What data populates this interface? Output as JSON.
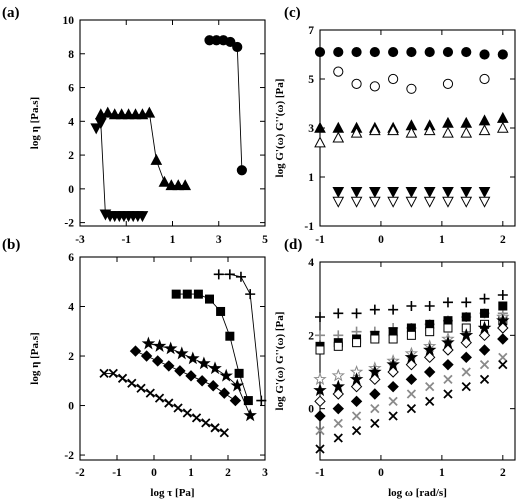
{
  "figure": {
    "colors": {
      "ink": "#000000",
      "gray": "#8a8a8a"
    },
    "panels": [
      {
        "id": "a",
        "label": "(a)"
      },
      {
        "id": "b",
        "label": "(b)"
      },
      {
        "id": "c",
        "label": "(c)"
      },
      {
        "id": "d",
        "label": "(d)"
      }
    ]
  },
  "chart_data": [
    {
      "panel": "(a)",
      "type": "line",
      "xlabel": "",
      "ylabel": "log η [Pa.s]",
      "xlim": [
        -3,
        5
      ],
      "ylim": [
        -2.2,
        10
      ],
      "xticks": [
        -3,
        -1,
        1,
        3,
        5
      ],
      "yticks": [
        -2,
        0,
        2,
        4,
        6,
        8,
        10
      ],
      "series": [
        {
          "marker": "tri-down",
          "line": true,
          "x": [
            -2.3,
            -2.1,
            -1.9,
            -1.7,
            -1.5,
            -1.3,
            -1.1,
            -0.9,
            -0.7,
            -0.5,
            -0.3
          ],
          "y": [
            3.6,
            3.9,
            -1.5,
            -1.6,
            -1.6,
            -1.6,
            -1.6,
            -1.6,
            -1.6,
            -1.6,
            -1.6
          ]
        },
        {
          "marker": "tri-up",
          "line": true,
          "x": [
            -2.1,
            -1.8,
            -1.5,
            -1.2,
            -0.9,
            -0.6,
            -0.3,
            0.0,
            0.3,
            0.65,
            0.95,
            1.25,
            1.55
          ],
          "y": [
            4.4,
            4.5,
            4.4,
            4.4,
            4.4,
            4.4,
            4.4,
            4.5,
            1.7,
            0.4,
            0.2,
            0.2,
            0.2
          ]
        },
        {
          "marker": "circle-filled",
          "line": true,
          "x": [
            2.6,
            2.9,
            3.2,
            3.5,
            3.8,
            4.0
          ],
          "y": [
            8.8,
            8.8,
            8.8,
            8.7,
            8.4,
            1.1
          ]
        }
      ]
    },
    {
      "panel": "(b)",
      "type": "line",
      "xlabel": "log τ [Pa]",
      "ylabel": "log η [Pa.s]",
      "xlim": [
        -2,
        3
      ],
      "ylim": [
        -2.2,
        6
      ],
      "xticks": [
        -2,
        -1,
        0,
        1,
        2,
        3
      ],
      "yticks": [
        -2,
        0,
        2,
        4,
        6
      ],
      "series": [
        {
          "marker": "cross",
          "line": true,
          "x": [
            -1.35,
            -1.1,
            -0.85,
            -0.6,
            -0.35,
            -0.1,
            0.15,
            0.4,
            0.65,
            0.9,
            1.15,
            1.4,
            1.65,
            1.9
          ],
          "y": [
            1.3,
            1.3,
            1.1,
            0.9,
            0.7,
            0.5,
            0.3,
            0.1,
            -0.1,
            -0.3,
            -0.5,
            -0.7,
            -0.9,
            -1.1
          ]
        },
        {
          "marker": "diamond-filled",
          "line": true,
          "x": [
            -0.5,
            -0.2,
            0.1,
            0.4,
            0.7,
            1.0,
            1.3,
            1.6,
            1.9,
            2.2
          ],
          "y": [
            2.2,
            2.0,
            1.8,
            1.6,
            1.4,
            1.2,
            1.0,
            0.8,
            0.5,
            0.2
          ]
        },
        {
          "marker": "star-filled",
          "line": true,
          "x": [
            -0.15,
            0.15,
            0.45,
            0.75,
            1.05,
            1.35,
            1.65,
            1.95,
            2.25,
            2.6
          ],
          "y": [
            2.5,
            2.4,
            2.3,
            2.1,
            1.9,
            1.7,
            1.5,
            1.2,
            0.8,
            -0.4
          ]
        },
        {
          "marker": "square-filled",
          "line": true,
          "x": [
            0.6,
            0.9,
            1.2,
            1.5,
            1.8,
            2.05,
            2.3,
            2.55
          ],
          "y": [
            4.5,
            4.5,
            4.5,
            4.3,
            3.8,
            2.8,
            1.3,
            0.2
          ]
        },
        {
          "marker": "plus",
          "line": true,
          "x": [
            1.75,
            2.05,
            2.35,
            2.6,
            2.9
          ],
          "y": [
            5.3,
            5.3,
            5.2,
            4.5,
            0.2
          ]
        }
      ]
    },
    {
      "panel": "(c)",
      "type": "scatter",
      "xlabel": "",
      "ylabel": "log G'(ω) G''(ω) [Pa]",
      "xlim": [
        -1,
        2.2
      ],
      "ylim": [
        -1,
        7
      ],
      "xticks": [
        -1,
        0,
        1,
        2
      ],
      "yticks": [
        -1,
        1,
        3,
        5,
        7
      ],
      "series": [
        {
          "marker": "circle-filled",
          "x": [
            -1,
            -0.7,
            -0.4,
            -0.1,
            0.2,
            0.5,
            0.8,
            1.1,
            1.4,
            1.7,
            2.0
          ],
          "y": [
            6.1,
            6.1,
            6.1,
            6.1,
            6.1,
            6.1,
            6.1,
            6.1,
            6.1,
            6.0,
            6.0
          ]
        },
        {
          "marker": "circle-open",
          "x": [
            -0.7,
            -0.4,
            -0.1,
            0.2,
            0.5,
            1.1,
            1.7
          ],
          "y": [
            5.3,
            4.8,
            4.7,
            5.0,
            4.6,
            4.8,
            5.0
          ]
        },
        {
          "marker": "tri-up-filled",
          "x": [
            -1,
            -0.7,
            -0.4,
            -0.1,
            0.2,
            0.5,
            0.8,
            1.1,
            1.4,
            1.7,
            2.0
          ],
          "y": [
            3.0,
            3.0,
            3.0,
            3.0,
            3.0,
            3.1,
            3.1,
            3.2,
            3.2,
            3.3,
            3.4
          ]
        },
        {
          "marker": "tri-up-open",
          "x": [
            -1,
            -0.7,
            -0.4,
            -0.1,
            0.2,
            0.5,
            0.8,
            1.1,
            1.4,
            1.7,
            2.0
          ],
          "y": [
            2.4,
            2.6,
            2.8,
            2.9,
            2.9,
            2.8,
            2.9,
            2.8,
            2.8,
            2.9,
            3.0
          ]
        },
        {
          "marker": "tri-down-filled",
          "x": [
            -0.7,
            -0.4,
            -0.1,
            0.2,
            0.5,
            0.8,
            1.1,
            1.4,
            1.7
          ],
          "y": [
            0.4,
            0.4,
            0.4,
            0.4,
            0.4,
            0.4,
            0.4,
            0.4,
            0.4
          ]
        },
        {
          "marker": "tri-down-open",
          "x": [
            -0.7,
            -0.4,
            -0.1,
            0.2,
            0.5,
            0.8,
            1.1,
            1.4,
            1.7
          ],
          "y": [
            0.0,
            0.0,
            0.0,
            0.0,
            0.0,
            0.0,
            0.0,
            0.0,
            0.0
          ]
        }
      ]
    },
    {
      "panel": "(d)",
      "type": "scatter",
      "xlabel": "log ω [rad/s]",
      "ylabel": "log G'(ω) G''(ω) [Pa]",
      "xlim": [
        -1,
        2.2
      ],
      "ylim": [
        -1.4,
        4
      ],
      "xticks": [
        -1,
        0,
        1,
        2
      ],
      "yticks": [
        0,
        2,
        4
      ],
      "series": [
        {
          "marker": "plus",
          "color": "ink",
          "x": [
            -1,
            -0.7,
            -0.4,
            -0.1,
            0.2,
            0.5,
            0.8,
            1.1,
            1.4,
            1.7,
            2.0
          ],
          "y": [
            2.5,
            2.6,
            2.6,
            2.7,
            2.7,
            2.8,
            2.8,
            2.9,
            2.9,
            3.0,
            3.1
          ]
        },
        {
          "marker": "plus",
          "color": "gray",
          "x": [
            -1,
            -0.7,
            -0.4,
            -0.1,
            0.2,
            0.5,
            0.8,
            1.1,
            1.4,
            1.7,
            2.0
          ],
          "y": [
            2.0,
            2.0,
            2.1,
            2.1,
            2.2,
            2.2,
            2.3,
            2.4,
            2.5,
            2.6,
            2.6
          ]
        },
        {
          "marker": "square-filled",
          "x": [
            -1,
            -0.7,
            -0.4,
            -0.1,
            0.2,
            0.5,
            0.8,
            1.1,
            1.4,
            1.7,
            2.0
          ],
          "y": [
            1.7,
            1.8,
            1.9,
            2.0,
            2.1,
            2.2,
            2.3,
            2.4,
            2.5,
            2.6,
            2.8
          ]
        },
        {
          "marker": "square-open",
          "x": [
            -1,
            -0.7,
            -0.4,
            -0.1,
            0.2,
            0.5,
            0.8,
            1.1,
            1.4,
            1.7,
            2.0
          ],
          "y": [
            1.6,
            1.7,
            1.8,
            1.9,
            1.9,
            2.0,
            2.1,
            2.2,
            2.2,
            2.3,
            2.4
          ]
        },
        {
          "marker": "star-open",
          "color": "gray",
          "x": [
            -1,
            -0.7,
            -0.4,
            -0.1,
            0.2,
            0.5,
            0.8,
            1.1,
            1.4,
            1.7,
            2.0
          ],
          "y": [
            0.8,
            0.9,
            1.0,
            1.1,
            1.3,
            1.5,
            1.7,
            1.9,
            2.0,
            2.2,
            2.5
          ]
        },
        {
          "marker": "star-filled",
          "x": [
            -1,
            -0.7,
            -0.4,
            -0.1,
            0.2,
            0.5,
            0.8,
            1.1,
            1.4,
            1.7,
            2.0
          ],
          "y": [
            0.5,
            0.6,
            0.8,
            1.0,
            1.2,
            1.4,
            1.6,
            1.8,
            2.0,
            2.2,
            2.4
          ]
        },
        {
          "marker": "diamond-open",
          "x": [
            -1,
            -0.7,
            -0.4,
            -0.1,
            0.2,
            0.5,
            0.8,
            1.1,
            1.4,
            1.7,
            2.0
          ],
          "y": [
            0.2,
            0.4,
            0.6,
            0.8,
            1.0,
            1.2,
            1.4,
            1.6,
            1.8,
            2.0,
            2.2
          ]
        },
        {
          "marker": "diamond-filled",
          "x": [
            -1,
            -0.7,
            -0.4,
            -0.1,
            0.2,
            0.5,
            0.8,
            1.1,
            1.4,
            1.7,
            2.0
          ],
          "y": [
            -0.2,
            0.0,
            0.2,
            0.4,
            0.6,
            0.8,
            1.0,
            1.2,
            1.4,
            1.6,
            1.9
          ]
        },
        {
          "marker": "cross",
          "color": "gray",
          "x": [
            -1,
            -0.7,
            -0.4,
            -0.1,
            0.2,
            0.5,
            0.8,
            1.1,
            1.4,
            1.7,
            2.0
          ],
          "y": [
            -0.6,
            -0.4,
            -0.2,
            0.0,
            0.2,
            0.4,
            0.6,
            0.8,
            1.0,
            1.2,
            1.4
          ]
        },
        {
          "marker": "cross",
          "color": "ink",
          "x": [
            -1,
            -0.7,
            -0.4,
            -0.1,
            0.2,
            0.5,
            0.8,
            1.1,
            1.4,
            1.7,
            2.0
          ],
          "y": [
            -1.1,
            -0.8,
            -0.6,
            -0.4,
            -0.2,
            0.0,
            0.2,
            0.4,
            0.6,
            0.8,
            1.2
          ]
        }
      ]
    }
  ]
}
